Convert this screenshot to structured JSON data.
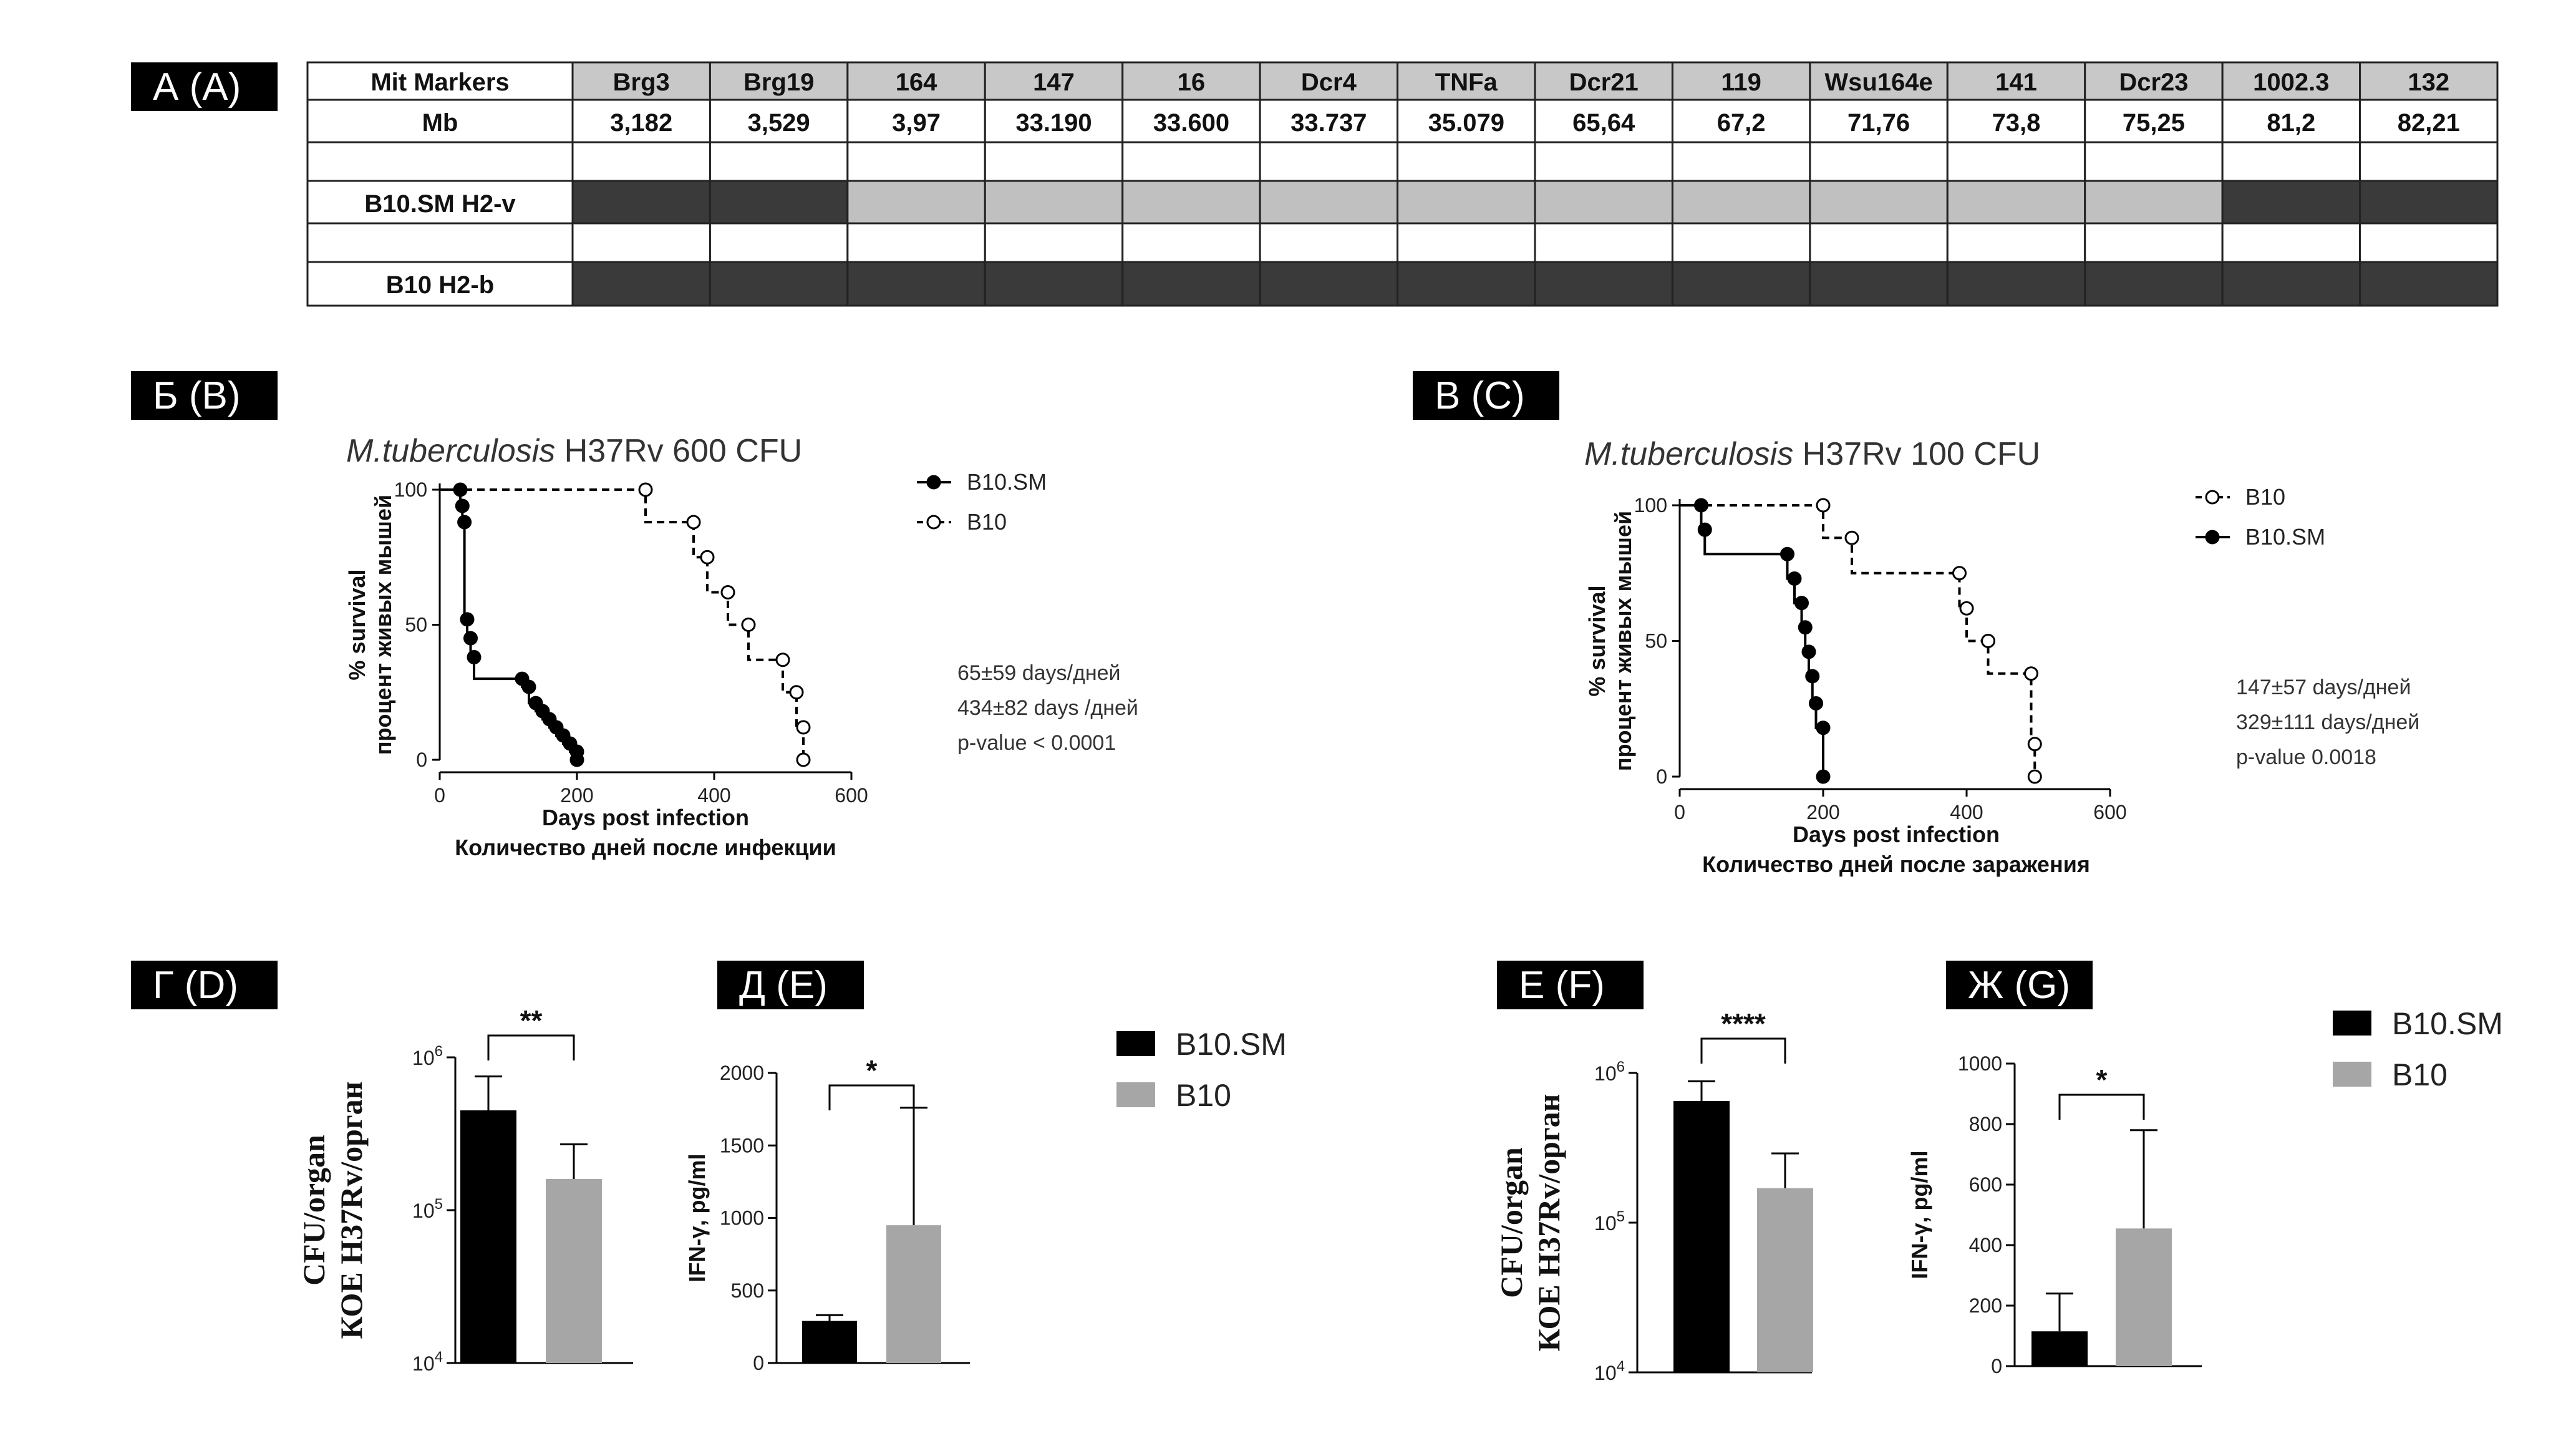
{
  "panels": {
    "A": "А (A)",
    "B": "Б (B)",
    "C": "В (C)",
    "D": "Г (D)",
    "E": "Д (E)",
    "F": "Е (F)",
    "G": "Ж (G)"
  },
  "table": {
    "row_header_markers": "Mit Markers",
    "row_header_mb": "Mb",
    "markers": [
      "Brg3",
      "Brg19",
      "164",
      "147",
      "16",
      "Dcr4",
      "TNFa",
      "Dcr21",
      "119",
      "Wsu164e",
      "141",
      "Dcr23",
      "1002.3",
      "132"
    ],
    "mb": [
      "3,182",
      "3,529",
      "3,97",
      "33.190",
      "33.600",
      "33.737",
      "35.079",
      "65,64",
      "67,2",
      "71,76",
      "73,8",
      "75,25",
      "81,2",
      "82,21"
    ],
    "strain1": "B10.SM H2-v",
    "strain1_cells": [
      "dark",
      "dark",
      "light",
      "light",
      "light",
      "light",
      "light",
      "light",
      "light",
      "light",
      "light",
      "light",
      "dark",
      "dark"
    ],
    "strain2": "B10 H2-b",
    "strain2_cells": [
      "dark",
      "dark",
      "dark",
      "dark",
      "dark",
      "dark",
      "dark",
      "dark",
      "dark",
      "dark",
      "dark",
      "dark",
      "dark",
      "dark"
    ],
    "colors": {
      "dark": "#3a3a3a",
      "light": "#c0c0c0",
      "header": "#c8c8c8"
    }
  },
  "chart_data": [
    {
      "id": "B",
      "type": "line",
      "title_italic": "M.tuberculosis",
      "title_rest": " H37Rv 600 CFU",
      "xlabel": "Days post infection",
      "xlabel2": "Количество дней после инфекции",
      "ylabel": "% survival",
      "ylabel2": "процент живых мышей",
      "xlim": [
        0,
        600
      ],
      "ylim": [
        0,
        100
      ],
      "xticks": [
        0,
        200,
        400,
        600
      ],
      "yticks": [
        0,
        50,
        100
      ],
      "series": [
        {
          "name": "B10.SM",
          "style": "solid",
          "x": [
            0,
            30,
            30,
            33,
            33,
            36,
            36,
            40,
            40,
            45,
            45,
            50,
            50,
            120,
            120,
            130,
            130,
            140,
            140,
            150,
            150,
            160,
            160,
            170,
            170,
            180,
            180,
            190,
            190,
            200,
            200
          ],
          "y": [
            100,
            100,
            94,
            94,
            88,
            88,
            52,
            52,
            45,
            45,
            38,
            38,
            30,
            30,
            27,
            27,
            21,
            21,
            18,
            18,
            15,
            15,
            12,
            12,
            9,
            9,
            6,
            6,
            3,
            3,
            0
          ]
        },
        {
          "name": "B10",
          "style": "dashed",
          "x": [
            0,
            300,
            300,
            370,
            370,
            390,
            390,
            420,
            420,
            450,
            450,
            500,
            500,
            520,
            520,
            530,
            530
          ],
          "y": [
            100,
            100,
            88,
            88,
            75,
            75,
            62,
            62,
            50,
            50,
            37,
            37,
            25,
            25,
            12,
            12,
            0
          ]
        }
      ],
      "legend": [
        "B10.SM",
        "B10"
      ],
      "stats": [
        "65±59 days/дней",
        "434±82 days /дней",
        "p-value < 0.0001"
      ]
    },
    {
      "id": "C",
      "type": "line",
      "title_italic": "M.tuberculosis",
      "title_rest": " H37Rv 100 CFU",
      "xlabel": "Days post infection",
      "xlabel2": "Количество дней после заражения",
      "ylabel": "% survival",
      "ylabel2": "процент живых мышей",
      "xlim": [
        0,
        600
      ],
      "ylim": [
        0,
        100
      ],
      "xticks": [
        0,
        200,
        400,
        600
      ],
      "yticks": [
        0,
        50,
        100
      ],
      "series": [
        {
          "name": "B10",
          "style": "dashed",
          "x": [
            0,
            200,
            200,
            240,
            240,
            390,
            390,
            400,
            400,
            430,
            430,
            490,
            490,
            495,
            495
          ],
          "y": [
            100,
            100,
            88,
            88,
            75,
            75,
            62,
            62,
            50,
            50,
            38,
            38,
            12,
            12,
            0
          ]
        },
        {
          "name": "B10.SM",
          "style": "solid",
          "x": [
            0,
            30,
            30,
            35,
            35,
            150,
            150,
            160,
            160,
            170,
            170,
            175,
            175,
            180,
            180,
            185,
            185,
            190,
            190,
            200,
            200
          ],
          "y": [
            100,
            100,
            91,
            91,
            82,
            82,
            73,
            73,
            64,
            64,
            55,
            55,
            46,
            46,
            37,
            37,
            27,
            27,
            18,
            18,
            0
          ]
        }
      ],
      "legend": [
        "B10",
        "B10.SM"
      ],
      "stats": [
        "147±57 days/дней",
        "329±111 days/дней",
        "p-value 0.0018"
      ]
    },
    {
      "id": "D",
      "type": "bar",
      "scale": "log",
      "ylabel": "CFU/organ",
      "ylabel2": "КОЕ H37Rv/орган",
      "ylim": [
        10000,
        1000000
      ],
      "yticks": [
        {
          "v": 10000,
          "b": "10",
          "e": "4"
        },
        {
          "v": 100000,
          "b": "10",
          "e": "5"
        },
        {
          "v": 1000000,
          "b": "10",
          "e": "6"
        }
      ],
      "categories": [
        "B10.SM",
        "B10"
      ],
      "values": [
        450000,
        160000
      ],
      "errors": [
        750000,
        270000
      ],
      "sig": "**"
    },
    {
      "id": "E",
      "type": "bar",
      "scale": "linear",
      "ylabel": "IFN-γ, pg/ml",
      "ylim": [
        0,
        2000
      ],
      "yticks": [
        0,
        500,
        1000,
        1500,
        2000
      ],
      "categories": [
        "B10.SM",
        "B10"
      ],
      "values": [
        290,
        950
      ],
      "errors": [
        330,
        1760
      ],
      "sig": "*"
    },
    {
      "id": "F",
      "type": "bar",
      "scale": "log",
      "ylabel": "CFU/organ",
      "ylabel2": "КОЕ H37Rv/орган",
      "ylim": [
        10000,
        1000000
      ],
      "yticks": [
        {
          "v": 10000,
          "b": "10",
          "e": "4"
        },
        {
          "v": 100000,
          "b": "10",
          "e": "5"
        },
        {
          "v": 1000000,
          "b": "10",
          "e": "6"
        }
      ],
      "categories": [
        "B10.SM",
        "B10"
      ],
      "values": [
        650000,
        170000
      ],
      "errors": [
        880000,
        290000
      ],
      "sig": "****"
    },
    {
      "id": "G",
      "type": "bar",
      "scale": "linear",
      "ylabel": "IFN-γ, pg/ml",
      "ylim": [
        0,
        1000
      ],
      "yticks": [
        0,
        200,
        400,
        600,
        800,
        1000
      ],
      "categories": [
        "B10.SM",
        "B10"
      ],
      "values": [
        115,
        455
      ],
      "errors": [
        240,
        780
      ],
      "sig": "*"
    }
  ],
  "bar_legend": [
    "B10.SM",
    "B10"
  ],
  "colors": {
    "black_bar": "#000000",
    "grey_bar": "#a6a6a6",
    "label_bg": "#000000"
  }
}
